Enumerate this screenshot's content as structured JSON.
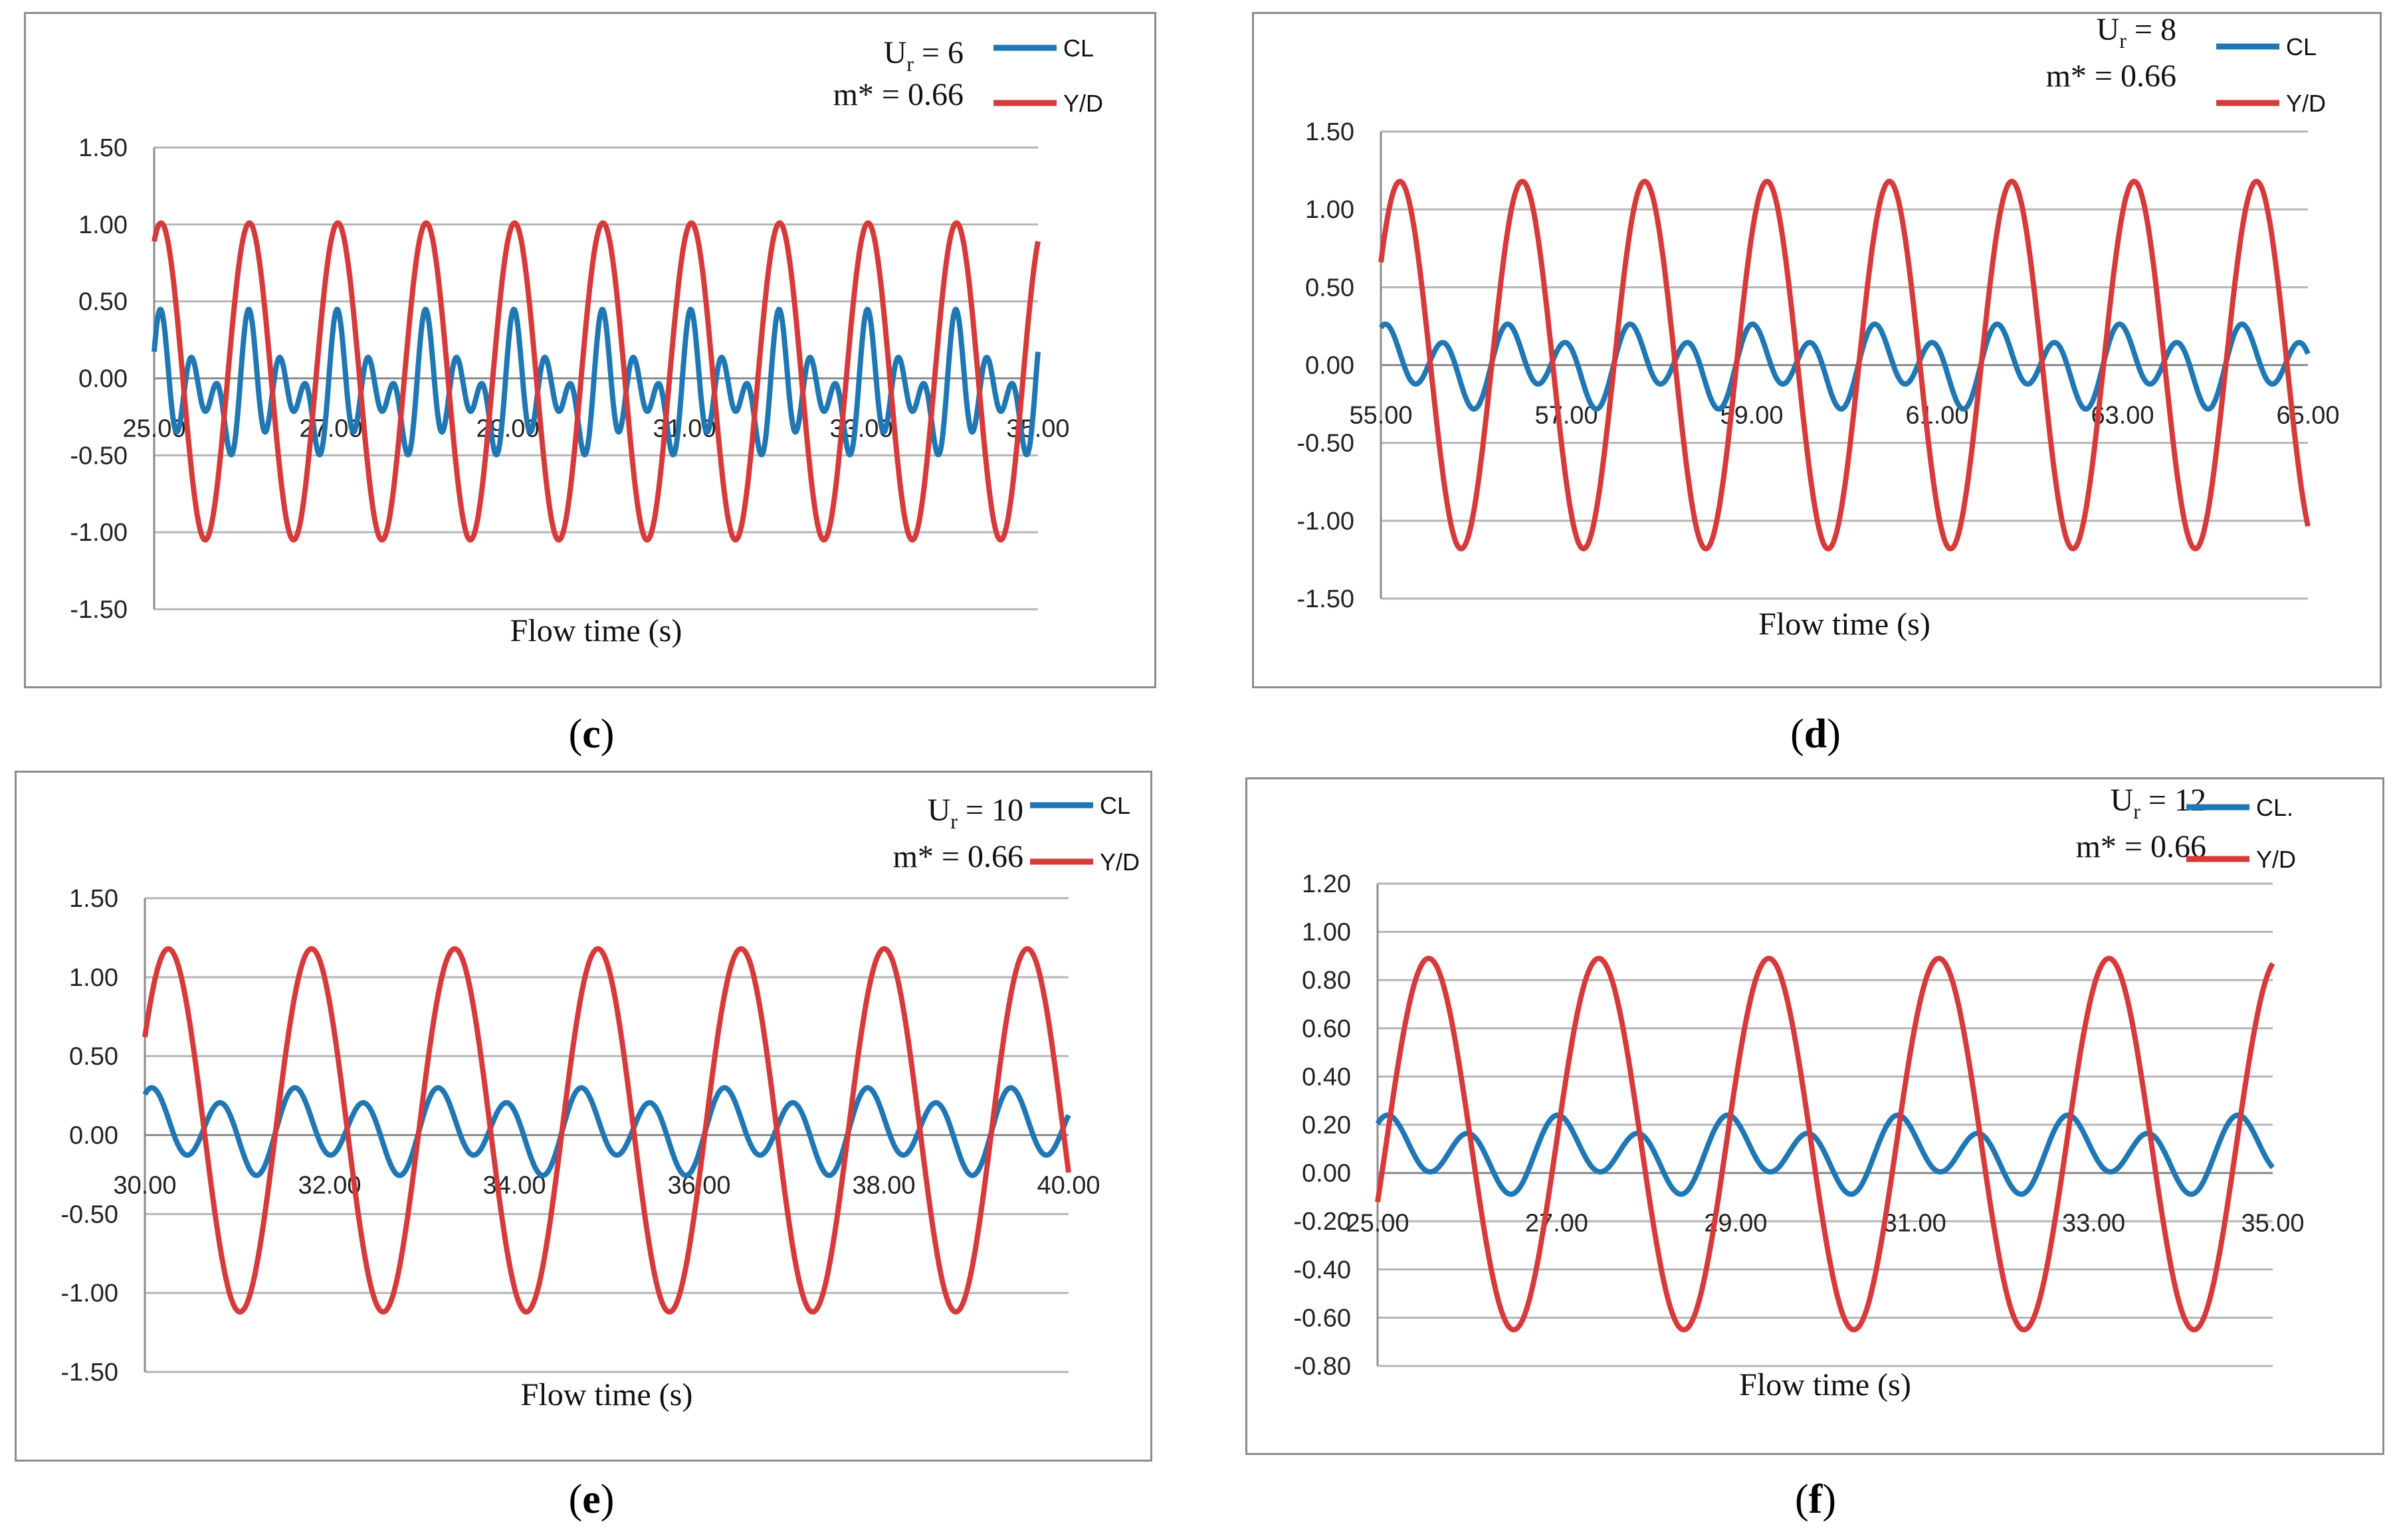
{
  "chart_data": [
    {
      "type": "line",
      "panel": "c",
      "xlabel": "Flow time (s)",
      "ylabel": "",
      "xlim": [
        25,
        35
      ],
      "ylim": [
        -1.5,
        1.5
      ],
      "yticks": [
        "1.50",
        "1.00",
        "0.50",
        "0.00",
        "-0.50",
        "-1.00",
        "-1.50"
      ],
      "ytick_values": [
        1.5,
        1.0,
        0.5,
        0.0,
        -0.5,
        -1.0,
        -1.5
      ],
      "xticks": [
        "25.00",
        "27.00",
        "29.00",
        "31.00",
        "33.00",
        "35.00"
      ],
      "xtick_values": [
        25,
        27,
        29,
        31,
        33,
        35
      ],
      "annotation": {
        "ur_sym": "U",
        "ur_sub": "r",
        "ur_value": " = 6",
        "mass": "m* = 0.66"
      },
      "series": [
        {
          "name": "CL",
          "color": "#1f77b4",
          "model": {
            "t0": 25,
            "period": 1.0,
            "a1": 0.12,
            "a2": 0.5,
            "a3": 0.2,
            "a1shift": 0.5,
            "phase": 0.3,
            "offset": -0.08
          }
        },
        {
          "name": "Y/D",
          "color": "#d63a3a",
          "model": {
            "t0": 25,
            "period": 1.0,
            "amp": 1.03,
            "phase": 0.0,
            "start": 0.89,
            "offset": -0.02
          }
        }
      ]
    },
    {
      "type": "line",
      "panel": "d",
      "xlabel": "Flow time (s)",
      "ylabel": "",
      "xlim": [
        55,
        65
      ],
      "ylim": [
        -1.5,
        1.5
      ],
      "yticks": [
        "1.50",
        "1.00",
        "0.50",
        "0.00",
        "-0.50",
        "-1.00",
        "-1.50"
      ],
      "ytick_values": [
        1.5,
        1.0,
        0.5,
        0.0,
        -0.5,
        -1.0,
        -1.5
      ],
      "xticks": [
        "55.00",
        "57.00",
        "59.00",
        "61.00",
        "63.00",
        "65.00"
      ],
      "xtick_values": [
        55,
        57,
        59,
        61,
        63,
        65
      ],
      "annotation": {
        "ur_sym": "U",
        "ur_sub": "r",
        "ur_value": " = 8",
        "mass": "m* = 0.66"
      },
      "series": [
        {
          "name": "CL",
          "color": "#1f77b4",
          "model": {
            "t0": 55,
            "period": 1.32,
            "a1": 0.1,
            "a2": 0.0,
            "a3": 0.2,
            "a1shift": 0.8,
            "phase": 0.5,
            "offset": 0.0
          }
        },
        {
          "name": "Y/D",
          "color": "#d63a3a",
          "model": {
            "t0": 55,
            "period": 1.32,
            "amp": 1.18,
            "phase": 0.0,
            "start": 0.66,
            "offset": 0.0
          }
        }
      ]
    },
    {
      "type": "line",
      "panel": "e",
      "xlabel": "Flow time (s)",
      "ylabel": "",
      "xlim": [
        30,
        40
      ],
      "ylim": [
        -1.5,
        1.5
      ],
      "yticks": [
        "1.50",
        "1.00",
        "0.50",
        "0.00",
        "-0.50",
        "-1.00",
        "-1.50"
      ],
      "ytick_values": [
        1.5,
        1.0,
        0.5,
        0.0,
        -0.5,
        -1.0,
        -1.5
      ],
      "xticks": [
        "30.00",
        "32.00",
        "34.00",
        "36.00",
        "38.00",
        "40.00"
      ],
      "xtick_values": [
        30,
        32,
        34,
        36,
        38,
        40
      ],
      "annotation": {
        "ur_sym": "U",
        "ur_sub": "r",
        "ur_value": " = 10",
        "mass": "m* = 0.66"
      },
      "series": [
        {
          "name": "CL",
          "color": "#1f77b4",
          "model": {
            "t0": 30,
            "period": 1.55,
            "a1": 0.08,
            "a2": 0.0,
            "a3": 0.22,
            "a1shift": 0.7,
            "phase": 0.4,
            "offset": 0.03
          }
        },
        {
          "name": "Y/D",
          "color": "#d63a3a",
          "model": {
            "t0": 30,
            "period": 1.55,
            "amp": 1.15,
            "phase": 0.0,
            "start": 0.62,
            "offset": 0.03
          }
        }
      ]
    },
    {
      "type": "line",
      "panel": "f",
      "xlabel": "Flow time (s)",
      "ylabel": "",
      "xlim": [
        25,
        35
      ],
      "ylim": [
        -0.8,
        1.2
      ],
      "yticks": [
        "1.20",
        "1.00",
        "0.80",
        "0.60",
        "0.40",
        "0.20",
        "0.00",
        "-0.20",
        "-0.40",
        "-0.60",
        "-0.80"
      ],
      "ytick_values": [
        1.2,
        1.0,
        0.8,
        0.6,
        0.4,
        0.2,
        0.0,
        -0.2,
        -0.4,
        -0.6,
        -0.8
      ],
      "xticks": [
        "25.00",
        "27.00",
        "29.00",
        "31.00",
        "33.00",
        "35.00"
      ],
      "xtick_values": [
        25,
        27,
        29,
        31,
        33,
        35
      ],
      "annotation": {
        "ur_sym": "U",
        "ur_sub": "r",
        "ur_value": " = 12",
        "mass": "m* = 0.66"
      },
      "series": [
        {
          "name": "CL.",
          "color": "#1f77b4",
          "model": {
            "t0": 25,
            "period": 1.9,
            "a1": 0.06,
            "a2": 0.0,
            "a3": 0.12,
            "a1shift": 0.6,
            "phase": 0.4,
            "offset": 0.08
          }
        },
        {
          "name": "Y/D",
          "color": "#d63a3a",
          "model": {
            "t0": 25,
            "period": 1.9,
            "amp": 0.77,
            "phase": 0.0,
            "start": -0.12,
            "offset": 0.12
          }
        }
      ]
    }
  ],
  "panel_labels": {
    "c": "c",
    "d": "d",
    "e": "e",
    "f": "f"
  }
}
